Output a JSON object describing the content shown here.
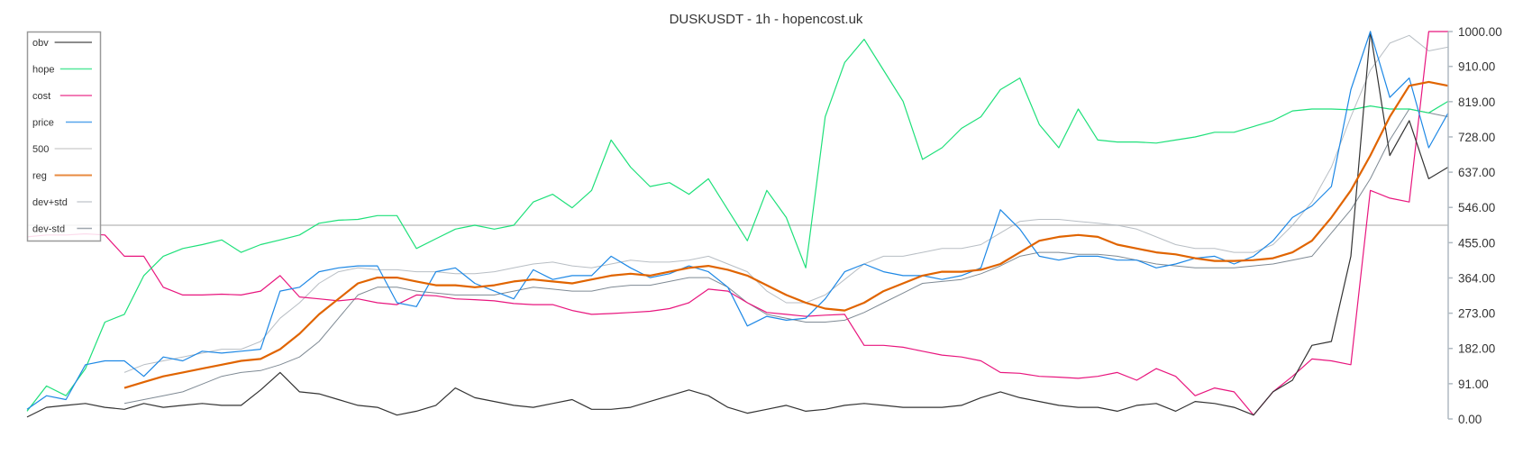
{
  "chart_data": {
    "type": "line",
    "title": "DUSKUSDT - 1h - hopencost.uk",
    "ylim": [
      0,
      1000
    ],
    "yticks": [
      "0.00",
      "91.00",
      "182.00",
      "273.00",
      "364.00",
      "455.00",
      "546.00",
      "637.00",
      "728.00",
      "819.00",
      "910.00",
      "1000.00"
    ],
    "ytick_values": [
      0,
      91,
      182,
      273,
      364,
      455,
      546,
      637,
      728,
      819,
      910,
      1000
    ],
    "y_axis_side": "right",
    "grid": false,
    "legend_placement": "top-left",
    "reference_line": {
      "name": "500",
      "value": 500,
      "color": "#c4c4c4"
    },
    "series": [
      {
        "name": "obv",
        "color": "#333333",
        "width": 1.2,
        "values": [
          5,
          30,
          35,
          40,
          30,
          25,
          40,
          30,
          35,
          40,
          35,
          35,
          75,
          120,
          70,
          65,
          50,
          35,
          30,
          10,
          20,
          35,
          80,
          55,
          45,
          35,
          30,
          40,
          50,
          25,
          25,
          30,
          45,
          60,
          75,
          60,
          30,
          15,
          25,
          35,
          20,
          25,
          35,
          40,
          35,
          30,
          30,
          30,
          35,
          55,
          70,
          55,
          45,
          35,
          30,
          30,
          20,
          35,
          40,
          20,
          45,
          40,
          30,
          10,
          70,
          100,
          190,
          200,
          420,
          1000,
          680,
          770,
          620,
          650
        ]
      },
      {
        "name": "hope",
        "color": "#1ee07a",
        "width": 1.2,
        "values": [
          20,
          85,
          60,
          130,
          250,
          270,
          370,
          420,
          440,
          450,
          462,
          430,
          450,
          462,
          475,
          505,
          513,
          515,
          525,
          525,
          440,
          465,
          490,
          500,
          490,
          500,
          560,
          580,
          545,
          590,
          720,
          650,
          600,
          610,
          580,
          620,
          540,
          460,
          590,
          520,
          390,
          780,
          920,
          980,
          900,
          820,
          670,
          700,
          750,
          780,
          850,
          880,
          760,
          700,
          800,
          720,
          715,
          715,
          712,
          720,
          728,
          740,
          740,
          755,
          770,
          795,
          800,
          800,
          798,
          808,
          800,
          800,
          790,
          820
        ]
      },
      {
        "name": "cost",
        "color": "#e8167e",
        "width": 1.2,
        "values": [
          470,
          475,
          475,
          478,
          475,
          420,
          420,
          340,
          320,
          320,
          322,
          320,
          330,
          370,
          315,
          310,
          305,
          310,
          300,
          295,
          320,
          318,
          310,
          308,
          305,
          298,
          295,
          295,
          280,
          270,
          272,
          275,
          278,
          285,
          300,
          335,
          330,
          300,
          275,
          270,
          265,
          268,
          270,
          190,
          190,
          185,
          175,
          165,
          160,
          150,
          120,
          118,
          110,
          108,
          105,
          110,
          120,
          100,
          130,
          110,
          60,
          80,
          70,
          10,
          70,
          110,
          155,
          150,
          140,
          590,
          570,
          560,
          1000,
          1000
        ]
      },
      {
        "name": "price",
        "color": "#1e88e5",
        "width": 1.2,
        "values": [
          25,
          60,
          50,
          140,
          150,
          150,
          110,
          160,
          150,
          175,
          170,
          175,
          180,
          330,
          340,
          380,
          390,
          395,
          395,
          300,
          290,
          380,
          390,
          350,
          330,
          310,
          385,
          360,
          370,
          370,
          420,
          390,
          365,
          375,
          395,
          380,
          340,
          240,
          265,
          255,
          260,
          310,
          380,
          400,
          380,
          370,
          370,
          360,
          370,
          390,
          540,
          490,
          420,
          410,
          420,
          420,
          410,
          410,
          390,
          400,
          415,
          420,
          400,
          420,
          460,
          520,
          550,
          600,
          850,
          1000,
          830,
          880,
          700,
          790
        ]
      },
      {
        "name": "reg",
        "color": "#e06400",
        "width": 2.2,
        "values": [
          null,
          null,
          null,
          null,
          null,
          80,
          95,
          110,
          120,
          130,
          140,
          150,
          155,
          180,
          220,
          270,
          310,
          350,
          365,
          365,
          355,
          345,
          345,
          340,
          345,
          355,
          360,
          355,
          350,
          360,
          370,
          375,
          370,
          380,
          390,
          395,
          385,
          370,
          345,
          320,
          300,
          285,
          280,
          300,
          330,
          350,
          370,
          380,
          380,
          385,
          400,
          430,
          460,
          470,
          475,
          470,
          450,
          440,
          430,
          425,
          415,
          408,
          408,
          410,
          415,
          430,
          460,
          520,
          590,
          680,
          780,
          860,
          870,
          860
        ]
      },
      {
        "name": "dev+std",
        "color": "#b8bec4",
        "width": 1,
        "values": [
          null,
          null,
          null,
          null,
          null,
          120,
          140,
          150,
          160,
          170,
          180,
          180,
          200,
          260,
          300,
          350,
          380,
          390,
          385,
          385,
          380,
          380,
          375,
          375,
          380,
          390,
          400,
          405,
          395,
          390,
          400,
          410,
          405,
          405,
          410,
          420,
          400,
          380,
          330,
          300,
          300,
          320,
          360,
          400,
          420,
          420,
          430,
          440,
          440,
          450,
          480,
          510,
          515,
          515,
          510,
          505,
          500,
          490,
          470,
          450,
          440,
          440,
          430,
          430,
          450,
          500,
          560,
          650,
          780,
          900,
          970,
          990,
          950,
          960
        ]
      },
      {
        "name": "dev-std",
        "color": "#7f8a94",
        "width": 1,
        "values": [
          null,
          null,
          null,
          null,
          null,
          40,
          50,
          60,
          70,
          90,
          110,
          120,
          125,
          140,
          160,
          200,
          260,
          320,
          340,
          340,
          330,
          325,
          320,
          320,
          320,
          330,
          340,
          335,
          330,
          330,
          340,
          345,
          345,
          355,
          365,
          365,
          340,
          300,
          270,
          260,
          250,
          250,
          255,
          275,
          300,
          325,
          350,
          355,
          360,
          375,
          395,
          420,
          430,
          430,
          425,
          425,
          420,
          410,
          400,
          395,
          390,
          390,
          390,
          395,
          400,
          410,
          420,
          480,
          540,
          620,
          720,
          800,
          790,
          780
        ]
      }
    ],
    "legend": [
      "obv",
      "hope",
      "cost",
      "price",
      "500",
      "reg",
      "dev+std",
      "dev-std"
    ]
  }
}
